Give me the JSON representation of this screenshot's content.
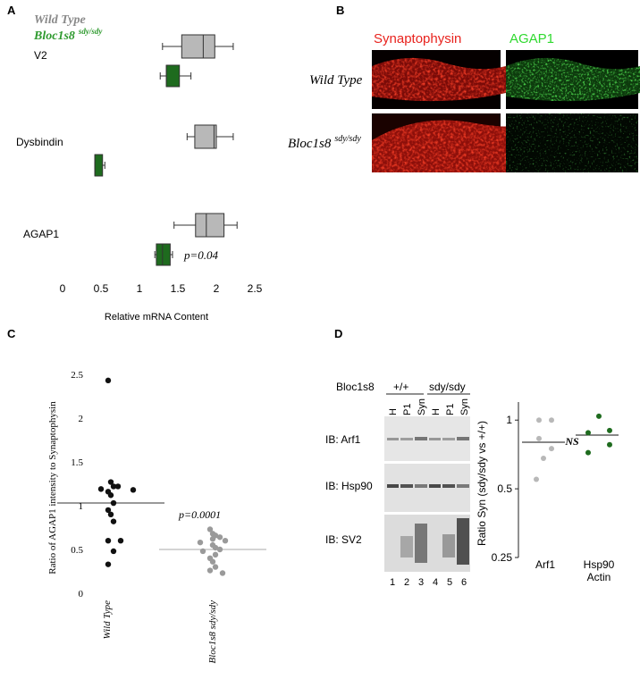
{
  "colors": {
    "wt": "#b8b8b8",
    "mut": "#1e6b1e",
    "mut_text": "#2e9a2e",
    "syn": "#e8231e",
    "agap": "#2fd92f",
    "black": "#111111",
    "grey": "#9a9a9a"
  },
  "panel_labels": {
    "a": "A",
    "b": "B",
    "c": "C",
    "d": "D"
  },
  "legend": {
    "wt": "Wild Type",
    "mut_main": "Bloc1s8",
    "mut_sup": "sdy/sdy"
  },
  "panel_b": {
    "col_syn": "Synaptophysin",
    "col_agap": "AGAP1",
    "row_wt": "Wild Type",
    "row_mut_main": "Bloc1s8",
    "row_mut_sup": "sdy/sdy"
  },
  "panel_d": {
    "bloc_label": "Bloc1s8",
    "wt_geno": "+/+",
    "mut_geno": "sdy/sdy",
    "fractions": [
      "H",
      "P1",
      "Syn",
      "H",
      "P1",
      "Syn"
    ],
    "lanes": [
      "1",
      "2",
      "3",
      "4",
      "5",
      "6"
    ],
    "blots": [
      "IB: Arf1",
      "IB: Hsp90",
      "IB: SV2"
    ],
    "ns_label": "NS"
  },
  "chart_data": [
    {
      "type": "box",
      "panel": "A",
      "xlabel": "Relative mRNA Content",
      "xlim": [
        0,
        2.5
      ],
      "xticks": [
        "0",
        "0.5",
        "1",
        "1.5",
        "2",
        "2.5"
      ],
      "categories": [
        "V2",
        "Dysbindin",
        "AGAP1"
      ],
      "series": [
        {
          "name": "Wild Type",
          "boxes": [
            {
              "min": 1.3,
              "q1": 1.55,
              "median": 1.83,
              "q3": 1.98,
              "max": 2.22
            },
            {
              "min": 1.62,
              "q1": 1.72,
              "median": 1.97,
              "q3": 2.0,
              "max": 2.22
            },
            {
              "min": 1.45,
              "q1": 1.73,
              "median": 1.87,
              "q3": 2.1,
              "max": 2.27
            }
          ]
        },
        {
          "name": "Bloc1s8 sdy/sdy",
          "boxes": [
            {
              "min": 1.27,
              "q1": 1.35,
              "median": 1.35,
              "q3": 1.52,
              "max": 1.67
            },
            {
              "min": 0.42,
              "q1": 0.42,
              "median": 0.42,
              "q3": 0.52,
              "max": 0.55
            },
            {
              "min": 1.2,
              "q1": 1.22,
              "median": 1.3,
              "q3": 1.4,
              "max": 1.43
            }
          ]
        }
      ],
      "annotation": "p=0.04"
    },
    {
      "type": "scatter",
      "panel": "C",
      "ylabel": "Ratio of AGAP1 intensity to Synaptophysin",
      "ylim": [
        0,
        2.5
      ],
      "yticks": [
        "0",
        "0.5",
        "1",
        "1.5",
        "2",
        "2.5"
      ],
      "categories": [
        "Wild Type",
        "Bloc1s8 sdy/sdy"
      ],
      "series": [
        {
          "name": "Wild Type",
          "mean": 1.03,
          "values": [
            2.43,
            1.27,
            1.22,
            1.22,
            1.19,
            1.18,
            1.16,
            1.12,
            1.03,
            0.95,
            0.9,
            0.82,
            0.6,
            0.6,
            0.48,
            0.33
          ]
        },
        {
          "name": "Bloc1s8 sdy/sdy",
          "mean": 0.5,
          "values": [
            0.73,
            0.68,
            0.66,
            0.64,
            0.62,
            0.6,
            0.58,
            0.55,
            0.52,
            0.5,
            0.48,
            0.44,
            0.4,
            0.36,
            0.3,
            0.26,
            0.23
          ]
        }
      ],
      "annotation": "p=0.0001"
    },
    {
      "type": "scatter",
      "panel": "D",
      "ylabel": "Ratio Syn (sdy/sdy vs +/+)",
      "ylim": [
        0.25,
        1.2
      ],
      "yticks": [
        "0.25",
        "0.5",
        "1"
      ],
      "categories": [
        "Arf1",
        "Hsp90 Actin"
      ],
      "series": [
        {
          "name": "Arf1",
          "mean": 0.8,
          "values": [
            1.0,
            1.0,
            0.83,
            0.75,
            0.68,
            0.55
          ]
        },
        {
          "name": "Hsp90 Actin",
          "mean": 0.86,
          "values": [
            1.04,
            0.9,
            0.88,
            0.78,
            0.72
          ]
        }
      ]
    }
  ]
}
